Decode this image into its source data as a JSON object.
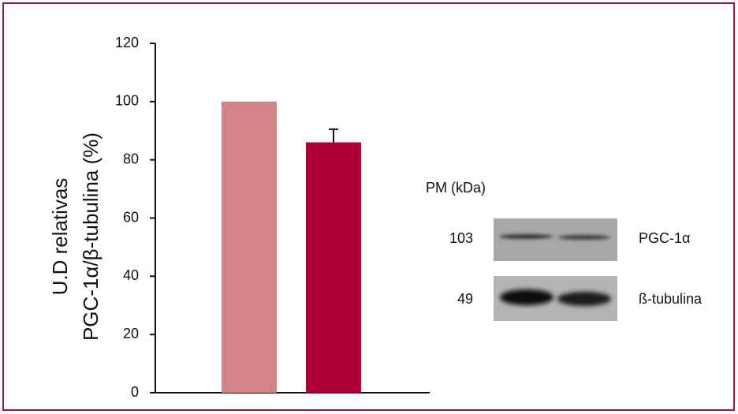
{
  "chart_data": {
    "type": "bar",
    "ylabel": [
      "U.D relativas",
      "PGC-1α/β-tubulina (%)"
    ],
    "categories": [
      null,
      null
    ],
    "values": [
      100,
      86
    ],
    "errors": [
      null,
      4.5
    ],
    "colors": [
      "#d48484",
      "#ae0034"
    ],
    "ylim": [
      0,
      120
    ],
    "yticks": [
      0,
      20,
      40,
      60,
      80,
      100,
      120
    ],
    "grid": false
  },
  "blot": {
    "header": "PM (kDa)",
    "rows": [
      {
        "mw": "103",
        "label": "PGC-1α"
      },
      {
        "mw": "49",
        "label": "ß-tubulina"
      }
    ]
  }
}
